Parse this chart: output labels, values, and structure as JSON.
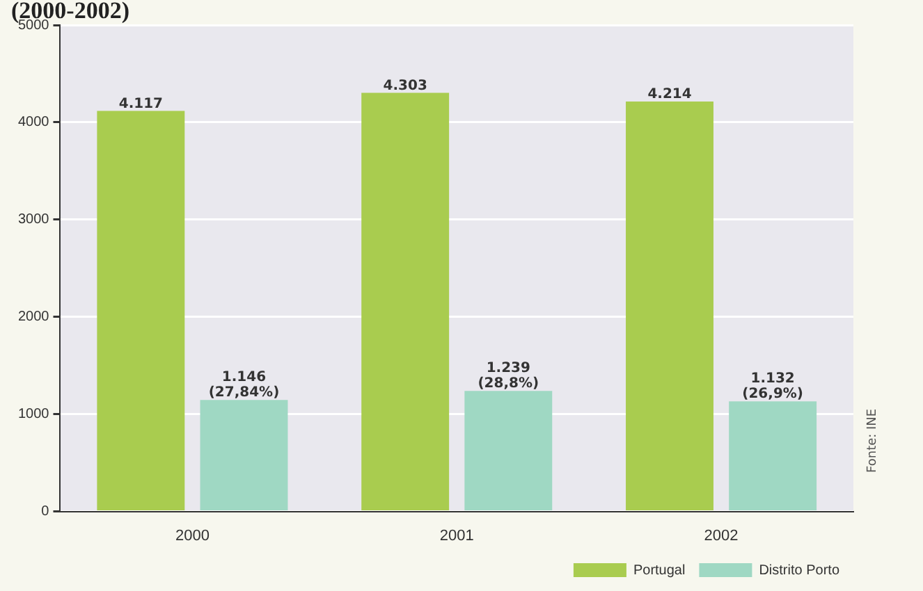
{
  "chart_data": {
    "type": "bar",
    "title": "(2000-2002)",
    "categories": [
      "2000",
      "2001",
      "2002"
    ],
    "series": [
      {
        "name": "Portugal",
        "color": "#a9cc4f",
        "values": [
          4117,
          4303,
          4214
        ],
        "value_labels": [
          "4.117",
          "4.303",
          "4.214"
        ]
      },
      {
        "name": "Distrito Porto",
        "color": "#9fd8c3",
        "values": [
          1146,
          1239,
          1132
        ],
        "value_labels": [
          "1.146\n(27,84%)",
          "1.239\n(28,8%)",
          "1.132\n(26,9%)"
        ]
      }
    ],
    "ylim": [
      0,
      5000
    ],
    "yticks": [
      0,
      1000,
      2000,
      3000,
      4000,
      5000
    ],
    "grid": "y",
    "legend": "bottom right",
    "annotations": [
      "Fonte: INE"
    ]
  }
}
